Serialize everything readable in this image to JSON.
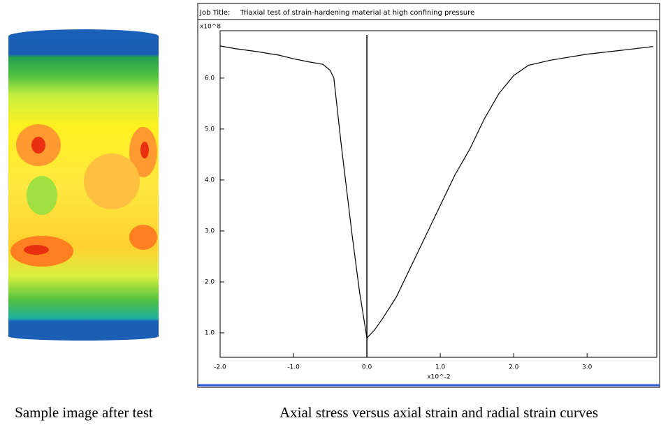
{
  "captions": [
    "Sample image after test",
    "Axial stress versus axial strain and radial strain curves"
  ],
  "chart_data": {
    "type": "line",
    "job_title_label": "Job Title:",
    "title": "Triaxial test of strain-hardening material at high confining pressure",
    "y_label": "x10^8",
    "x_label": "x10^-2",
    "xlim": [
      -2.0,
      3.95
    ],
    "ylim": [
      0.52,
      6.93
    ],
    "xticks": [
      {
        "value": -2,
        "label": "-2.0"
      },
      {
        "value": -1,
        "label": "-1.0"
      },
      {
        "value": 0,
        "label": "0.0"
      },
      {
        "value": 1,
        "label": "1.0"
      },
      {
        "value": 2,
        "label": "2.0"
      },
      {
        "value": 3,
        "label": "3.0"
      }
    ],
    "yticks": [
      {
        "value": 1,
        "label": "1.0"
      },
      {
        "value": 2,
        "label": "2.0"
      },
      {
        "value": 3,
        "label": "3.0"
      },
      {
        "value": 4,
        "label": "4.0"
      },
      {
        "value": 5,
        "label": "5.0"
      },
      {
        "value": 6,
        "label": "6.0"
      }
    ],
    "series": [
      {
        "color": "#000000",
        "x": [
          -2.0,
          -1.8,
          -1.5,
          -1.2,
          -1.0,
          -0.8,
          -0.6,
          -0.5,
          -0.45,
          -0.35,
          -0.2,
          -0.1,
          0.0
        ],
        "values": [
          6.63,
          6.58,
          6.52,
          6.45,
          6.38,
          6.32,
          6.27,
          6.15,
          6.0,
          4.7,
          2.9,
          1.8,
          0.9
        ]
      },
      {
        "color": "#000000",
        "x": [
          0.0,
          0.1,
          0.2,
          0.4,
          0.6,
          0.8,
          1.0,
          1.2,
          1.4,
          1.6,
          1.8,
          2.0,
          2.2,
          2.5,
          3.0,
          3.5,
          3.9
        ],
        "values": [
          0.9,
          1.05,
          1.25,
          1.7,
          2.3,
          2.9,
          3.5,
          4.1,
          4.6,
          5.2,
          5.7,
          6.05,
          6.25,
          6.35,
          6.47,
          6.55,
          6.62
        ]
      }
    ]
  }
}
